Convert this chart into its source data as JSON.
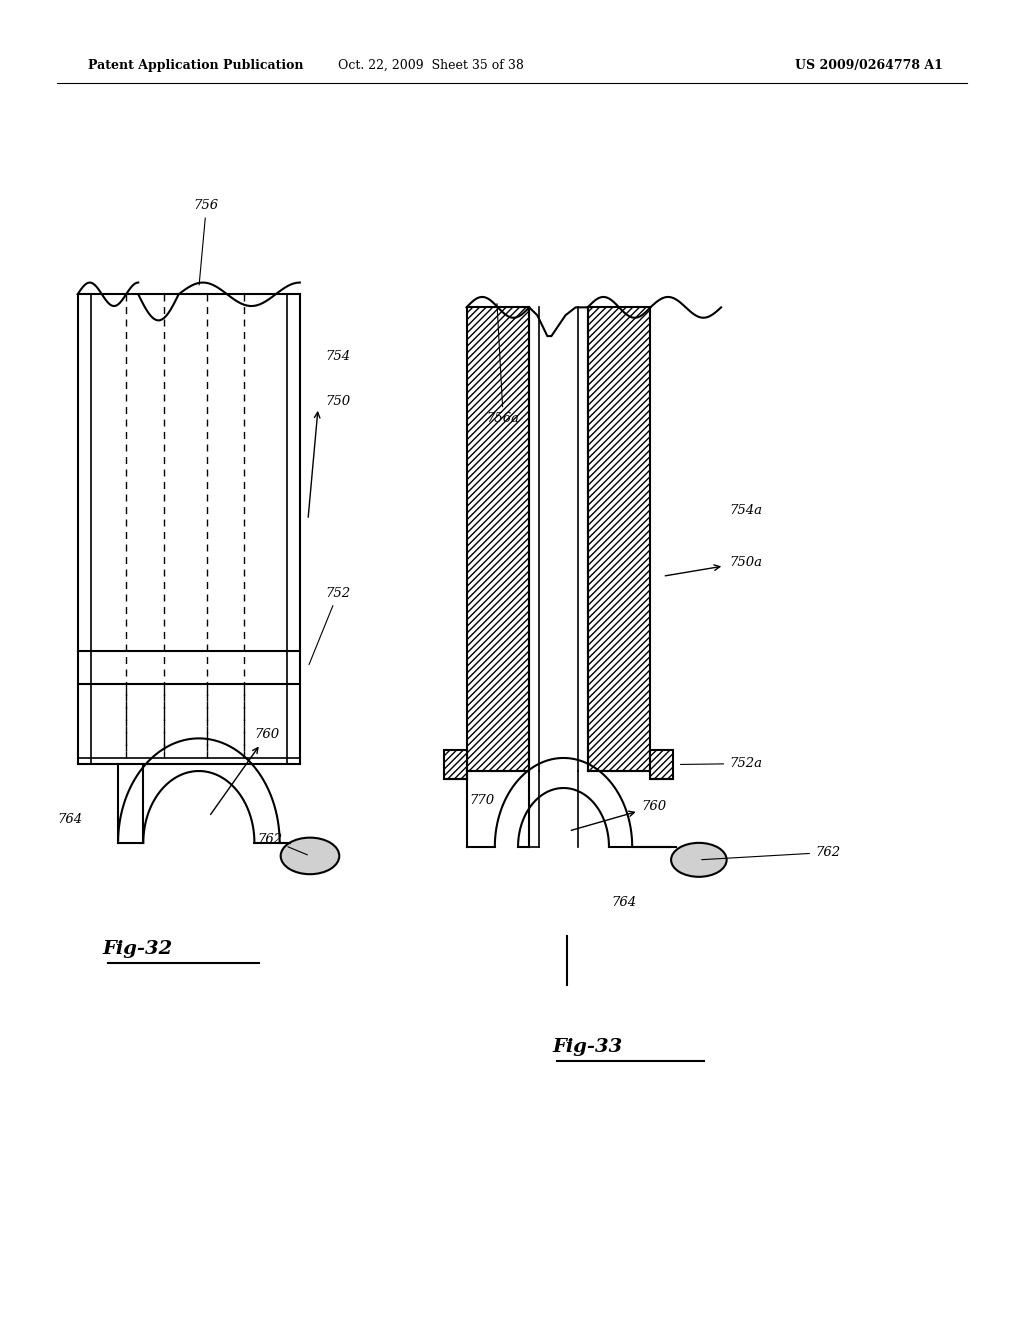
{
  "header_left": "Patent Application Publication",
  "header_mid": "Oct. 22, 2009  Sheet 35 of 38",
  "header_right": "US 2009/0264778 A1",
  "fig32_label": "Fig-32",
  "fig33_label": "Fig-33",
  "bg_color": "#ffffff",
  "line_color": "#000000"
}
